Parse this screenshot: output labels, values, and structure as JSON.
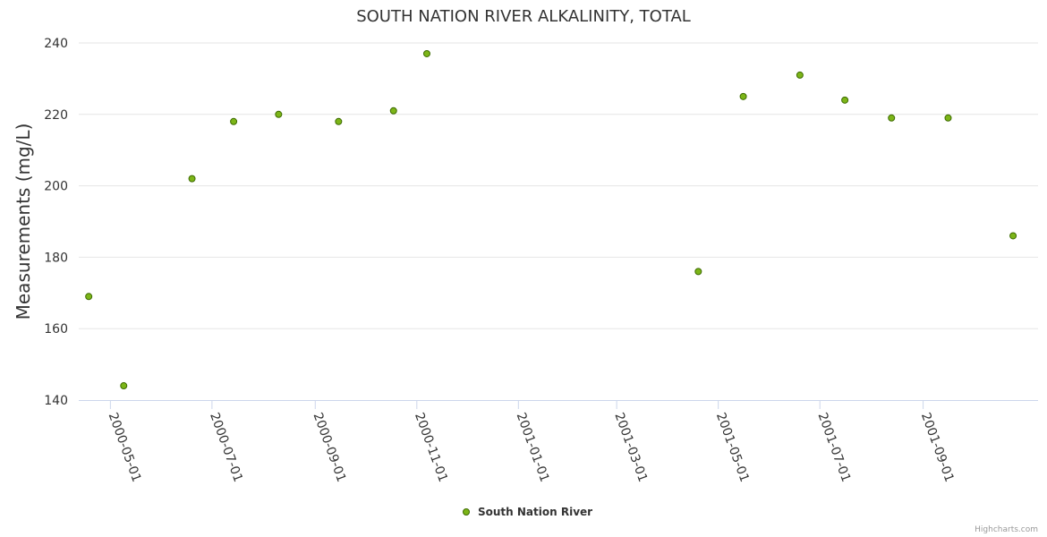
{
  "chart_data": {
    "type": "scatter",
    "title": "SOUTH NATION RIVER ALKALINITY, TOTAL",
    "ylabel": "Measurements (mg/L)",
    "xlabel": "",
    "ylim": [
      140,
      240
    ],
    "yticks": [
      140,
      160,
      180,
      200,
      220,
      240
    ],
    "xlim": [
      "2000-04-12",
      "2001-11-09"
    ],
    "xticks": [
      "2000-05-01",
      "2000-07-01",
      "2000-09-01",
      "2000-11-01",
      "2001-01-01",
      "2001-03-01",
      "2001-05-01",
      "2001-07-01",
      "2001-09-01"
    ],
    "grid": true,
    "legend_position": "bottom-center",
    "series": [
      {
        "name": "South Nation River",
        "color": "#7cb518",
        "points": [
          {
            "x": "2000-04-18",
            "y": 169
          },
          {
            "x": "2000-05-09",
            "y": 144
          },
          {
            "x": "2000-06-19",
            "y": 202
          },
          {
            "x": "2000-07-14",
            "y": 218
          },
          {
            "x": "2000-08-10",
            "y": 220
          },
          {
            "x": "2000-09-15",
            "y": 218
          },
          {
            "x": "2000-10-18",
            "y": 221
          },
          {
            "x": "2000-11-07",
            "y": 237
          },
          {
            "x": "2001-04-19",
            "y": 176
          },
          {
            "x": "2001-05-16",
            "y": 225
          },
          {
            "x": "2001-06-19",
            "y": 231
          },
          {
            "x": "2001-07-16",
            "y": 224
          },
          {
            "x": "2001-08-13",
            "y": 219
          },
          {
            "x": "2001-09-16",
            "y": 219
          },
          {
            "x": "2001-10-25",
            "y": 186
          }
        ]
      }
    ]
  },
  "credits": "Highcharts.com"
}
